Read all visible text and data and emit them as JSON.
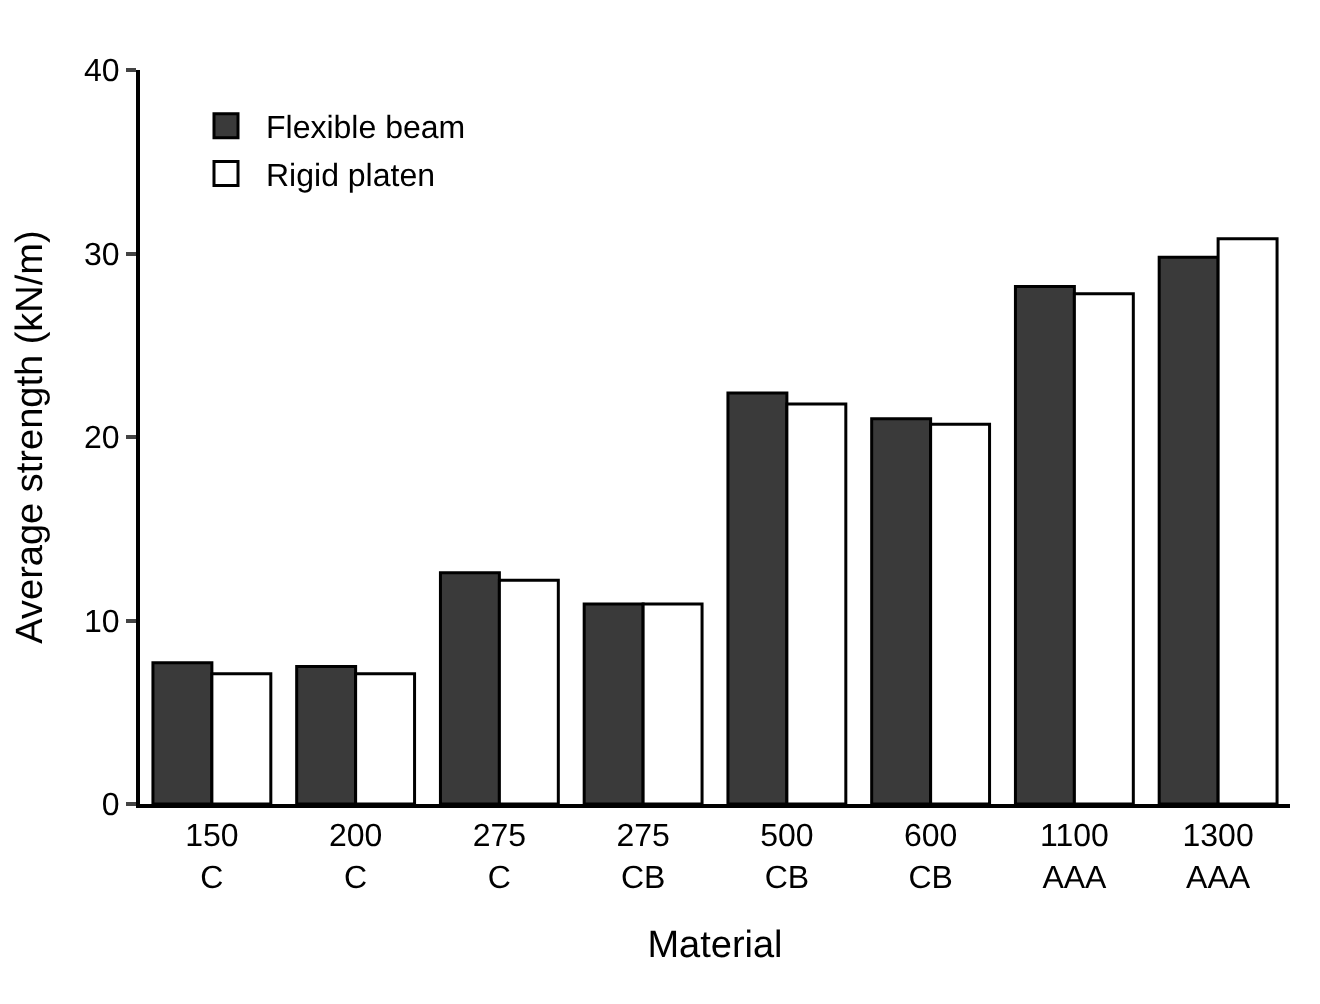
{
  "chart_data": {
    "type": "bar",
    "xlabel": "Material",
    "ylabel": "Average strength (kN/m)",
    "categories": [
      "150\nC",
      "200\nC",
      "275\nC",
      "275\nCB",
      "500\nCB",
      "600\nCB",
      "1100\nAAA",
      "1300\nAAA"
    ],
    "series": [
      {
        "name": "Flexible beam",
        "color": "#3a3a3a",
        "values": [
          7.7,
          7.5,
          12.6,
          10.9,
          22.4,
          21.0,
          28.2,
          29.8
        ]
      },
      {
        "name": "Rigid platen",
        "color": "#ffffff",
        "values": [
          7.1,
          7.1,
          12.2,
          10.9,
          21.8,
          20.7,
          27.8,
          30.8
        ]
      }
    ],
    "ylim": [
      0,
      40
    ],
    "yticks": [
      0,
      10,
      20,
      30,
      40
    ],
    "grid": false,
    "legend": "top left"
  }
}
